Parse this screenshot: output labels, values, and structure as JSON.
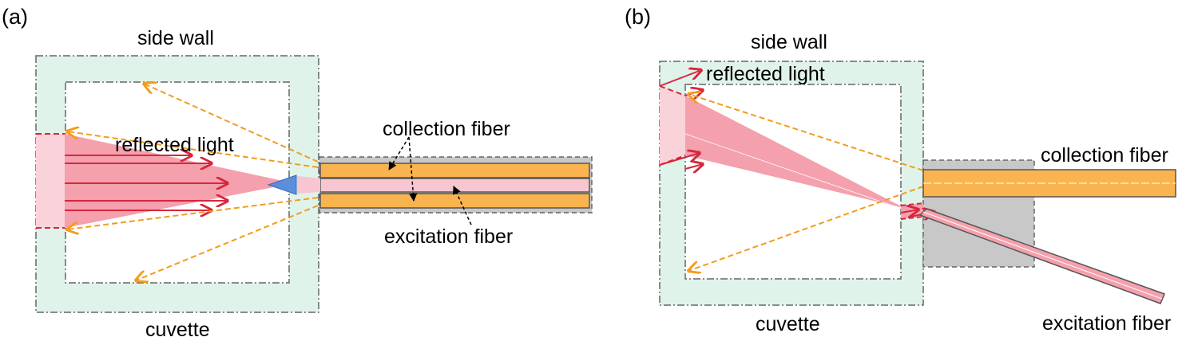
{
  "panels": [
    {
      "label": "(a)",
      "texts": {
        "side_wall": "side wall",
        "reflected_light": "reflected light",
        "collection_fiber": "collection fiber",
        "excitation_fiber": "excitation fiber",
        "cuvette": "cuvette"
      }
    },
    {
      "label": "(b)",
      "texts": {
        "side_wall": "side wall",
        "reflected_light": "reflected light",
        "collection_fiber": "collection fiber",
        "excitation_fiber": "excitation fiber",
        "cuvette": "cuvette"
      }
    }
  ],
  "colors": {
    "wall_fill": "#dff3ea",
    "beam": "#f4a0ad",
    "beam_light": "#f9d2da",
    "ray_red": "#d7263d",
    "ray_orange": "#f39c1b",
    "fiber_orange": "#f9b44f",
    "fiber_core": "#f8c6d0",
    "ferrule_gray": "#c8c8c8",
    "prism_blue": "#5b8fdc"
  }
}
